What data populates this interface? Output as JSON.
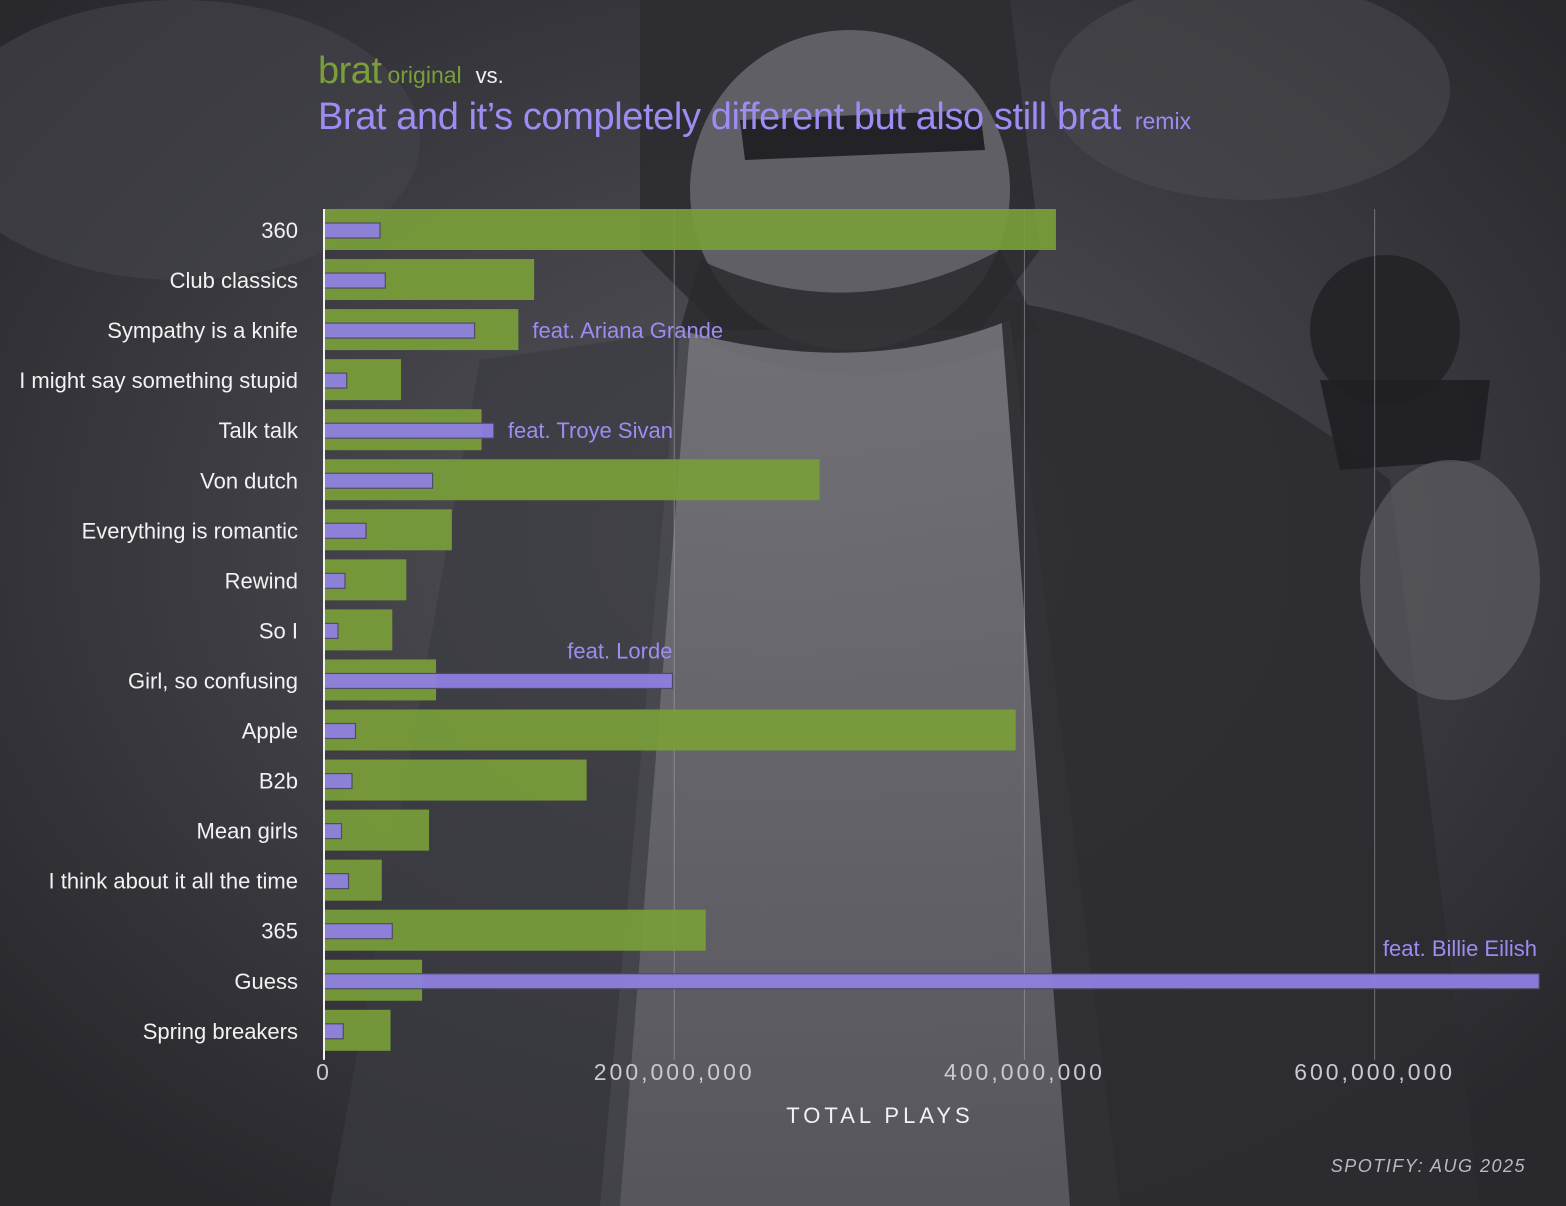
{
  "title": {
    "original_name": "brat",
    "original_tag": "original",
    "vs": "vs.",
    "remix_name": "Brat and it’s completely different but also still brat",
    "remix_tag": "remix"
  },
  "source": "SPOTIFY: AUG 2025",
  "colors": {
    "original": "#7a9e3a",
    "remix": "#8f7fe0",
    "remix_label": "#9d8cf2",
    "text": "#f2f2f2",
    "axis_text": "#c9c9cf"
  },
  "chart_data": {
    "type": "bar",
    "orientation": "horizontal",
    "categories": [
      "360",
      "Club classics",
      "Sympathy is a knife",
      "I might say something stupid",
      "Talk talk",
      "Von dutch",
      "Everything is romantic",
      "Rewind",
      "So I",
      "Girl, so confusing",
      "Apple",
      "B2b",
      "Mean girls",
      "I think about it all the time",
      "365",
      "Guess",
      "Spring breakers"
    ],
    "series": [
      {
        "name": "original",
        "values": [
          418000000,
          120000000,
          111000000,
          44000000,
          90000000,
          283000000,
          73000000,
          47000000,
          39000000,
          64000000,
          395000000,
          150000000,
          60000000,
          33000000,
          218000000,
          56000000,
          38000000
        ]
      },
      {
        "name": "remix",
        "values": [
          32000000,
          35000000,
          86000000,
          13000000,
          97000000,
          62000000,
          24000000,
          12000000,
          8000000,
          199000000,
          18000000,
          16000000,
          10000000,
          14000000,
          39000000,
          694000000,
          11000000
        ]
      }
    ],
    "annotations": [
      {
        "category": "Sympathy is a knife",
        "text": "feat. Ariana Grande"
      },
      {
        "category": "Talk talk",
        "text": "feat. Troye Sivan"
      },
      {
        "category": "Girl, so confusing",
        "text": "feat. Lorde"
      },
      {
        "category": "Guess",
        "text": "feat. Billie Eilish"
      }
    ],
    "xlabel": "TOTAL PLAYS",
    "xlim": [
      0,
      695000000
    ],
    "xticks": [
      0,
      200000000,
      400000000,
      600000000
    ],
    "xtick_labels": [
      "0",
      "200,000,000",
      "400,000,000",
      "600,000,000"
    ],
    "grid": true,
    "background": "dark grayscale photograph"
  }
}
